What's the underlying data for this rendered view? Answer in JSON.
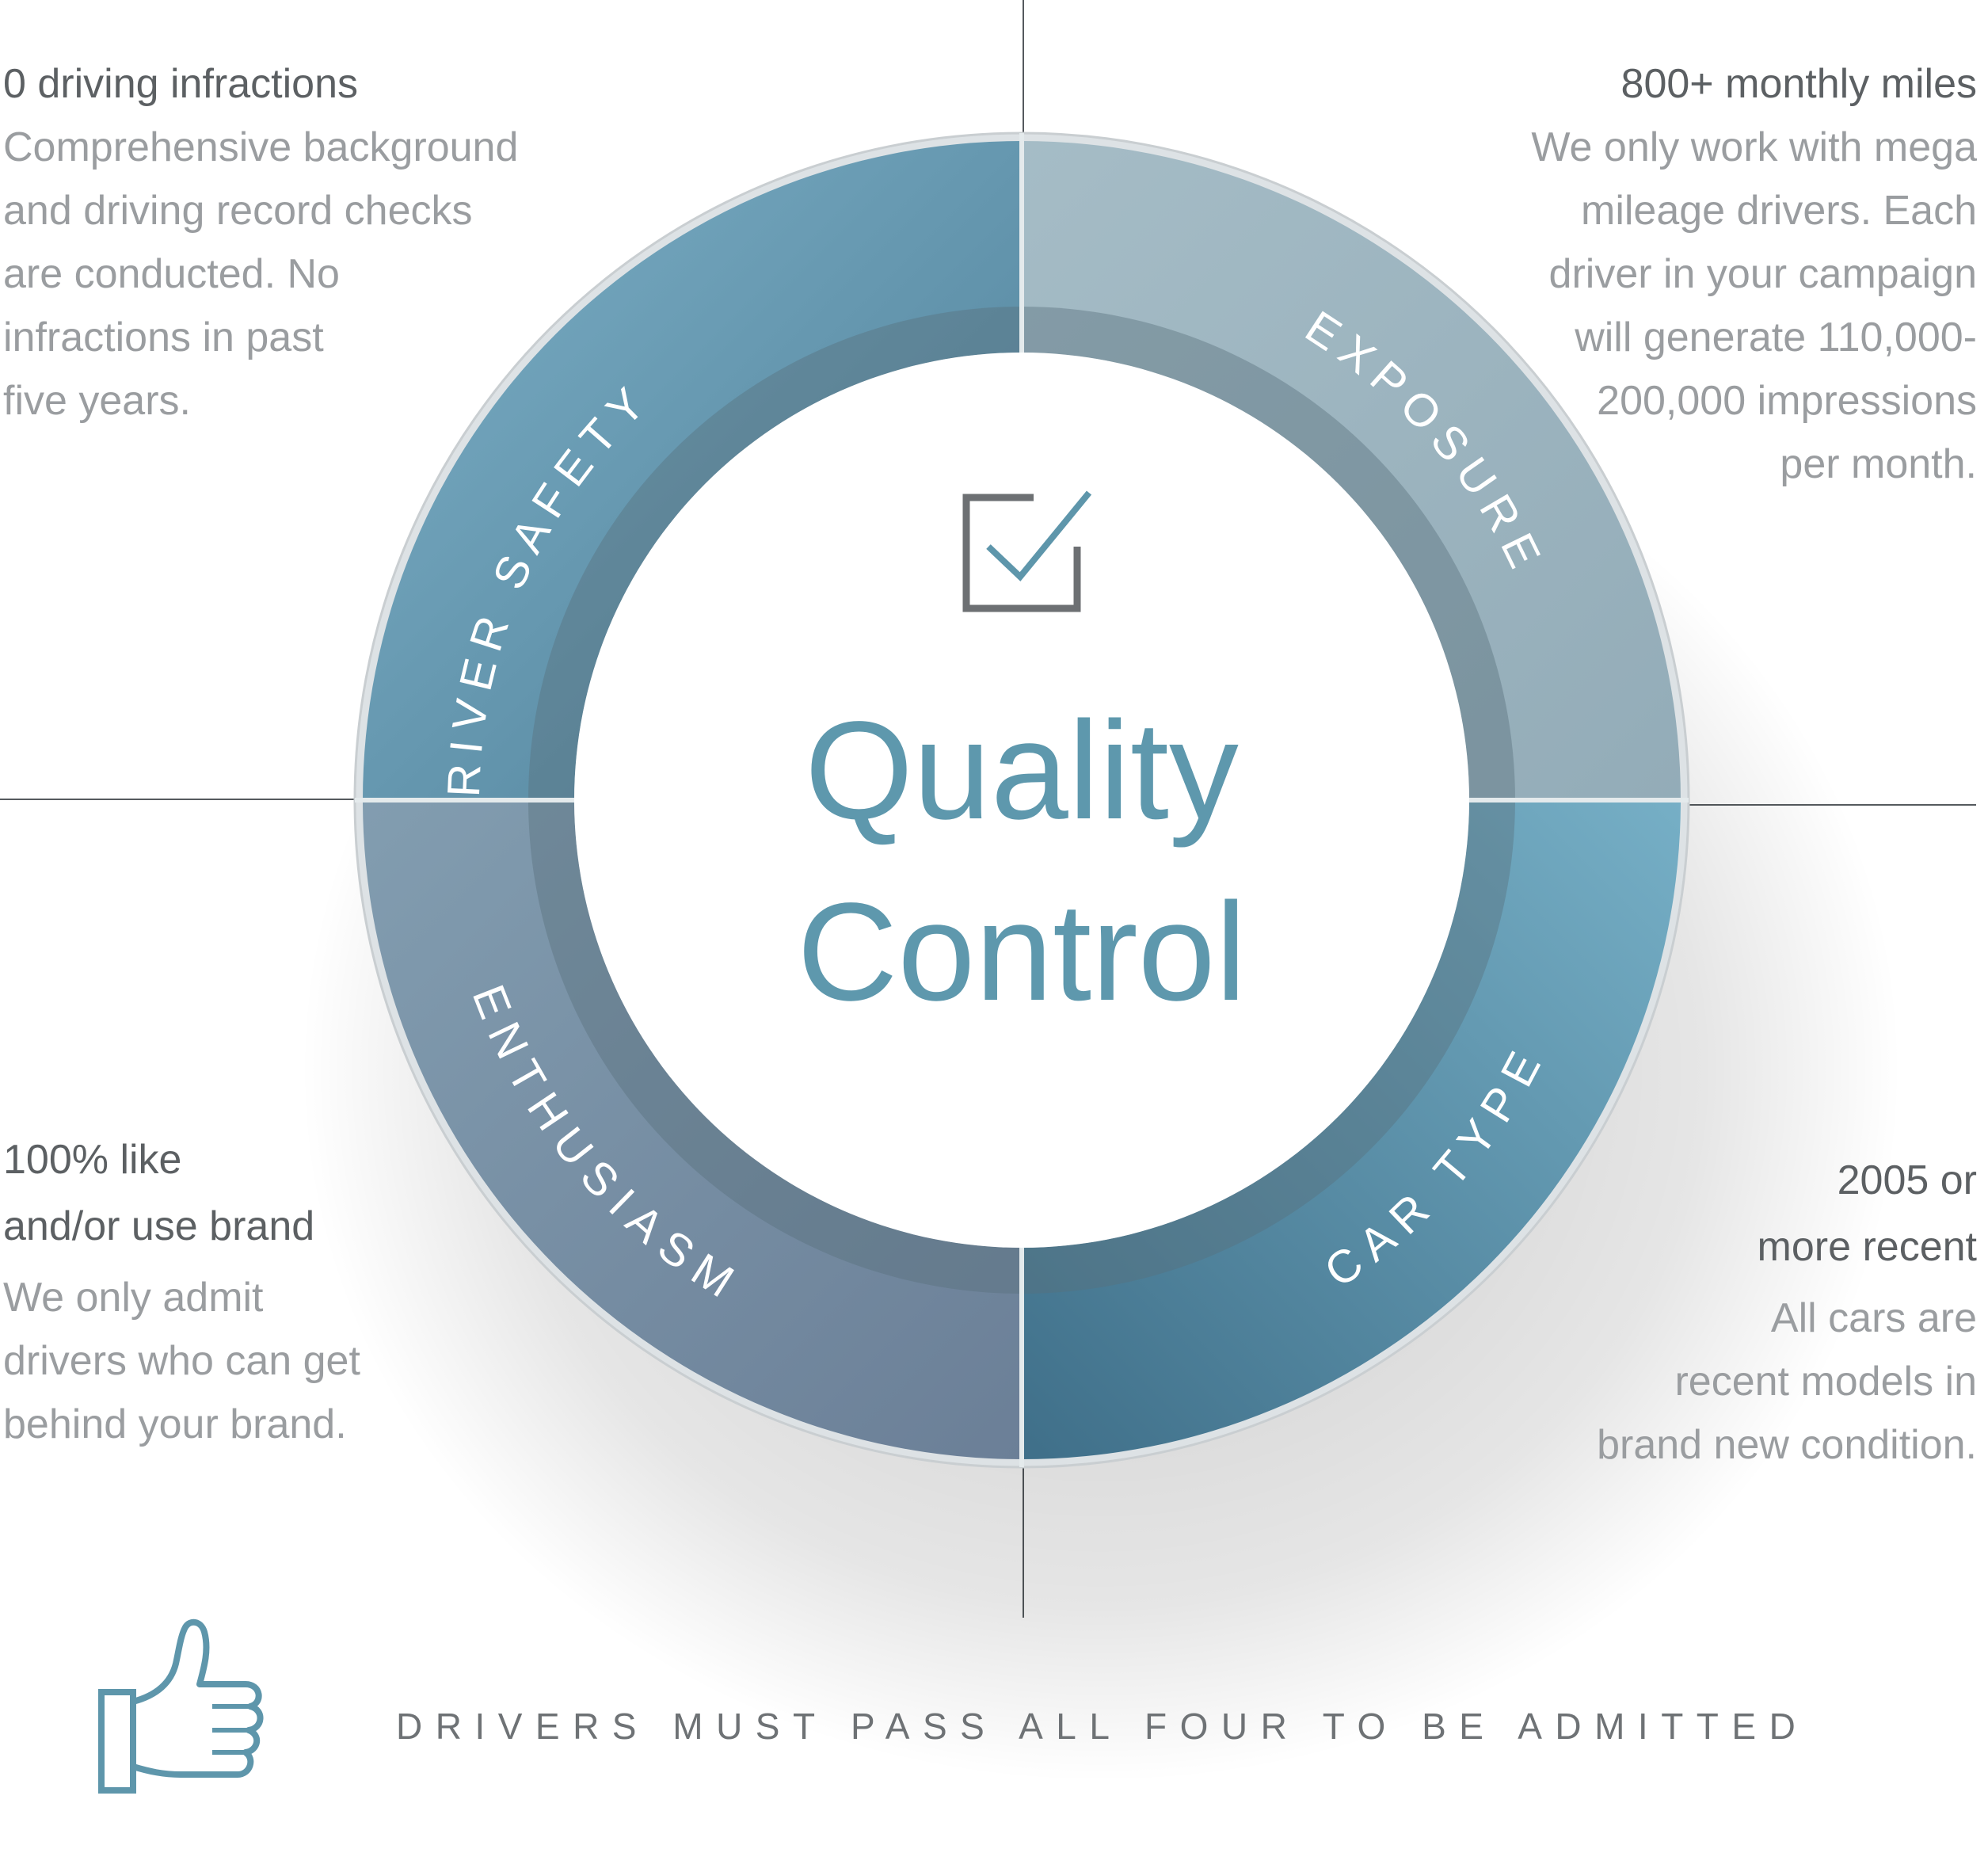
{
  "center": {
    "title_line1": "Quality",
    "title_line2": "Control",
    "icon": "checkbox-check-icon"
  },
  "segments": [
    {
      "key": "driver_safety",
      "label": "DRIVER SAFETY",
      "color": "#5f94ab"
    },
    {
      "key": "exposure",
      "label": "EXPOSURE",
      "color": "#9ab2bd"
    },
    {
      "key": "car_type",
      "label": "CAR TYPE",
      "color": "#5990aa"
    },
    {
      "key": "enthusiasm",
      "label": "ENTHUSIASM",
      "color": "#728aa3"
    }
  ],
  "blurbs": {
    "driver_safety": {
      "heading": "0 driving infractions",
      "body": "Comprehensive background\nand driving record checks\nare conducted. No\ninfractions in past\nfive years."
    },
    "exposure": {
      "heading": "800+ monthly miles",
      "body": "We only work with mega\nmileage drivers. Each\ndriver in your campaign\nwill generate 110,000-\n200,000 impressions\nper month."
    },
    "enthusiasm": {
      "heading": "100% like\nand/or use brand",
      "body": "We only admit\ndrivers who can get\nbehind your brand."
    },
    "car_type": {
      "heading": "2005 or\nmore recent",
      "body": "All cars are\nrecent models in\nbrand new condition."
    }
  },
  "footer": {
    "text": "DRIVERS MUST PASS ALL FOUR TO BE ADMITTED",
    "icon": "thumbs-up-icon"
  },
  "colors": {
    "title": "#5e98ad",
    "label": "#ffffff",
    "heading_text": "#5c6063",
    "body_text": "#9a9da0",
    "footer_text": "#6e7275",
    "icon_stroke": "#5e96ab",
    "checkbox": "#6d7073"
  }
}
